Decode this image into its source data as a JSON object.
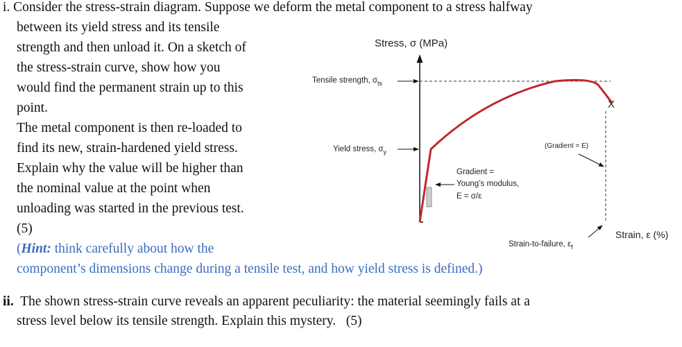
{
  "question_i": {
    "lines": [
      "i. Consider the stress-strain diagram. Suppose we deform the metal component to a stress halfway",
      "between its yield stress and its tensile",
      "strength and then unload it. On a sketch of",
      "the stress-strain curve, show how you",
      "would find the permanent strain up to this",
      "point.",
      "The metal component is then re-loaded to",
      "find its new, strain-hardened yield stress.",
      "Explain why the value will be higher than",
      "the nominal value at the point when",
      "unloading was started in the previous test.",
      "(5)"
    ]
  },
  "hint": {
    "open": "(",
    "emphasis": "Hint:",
    "lines": [
      " think carefully about how the",
      "component’s dimensions change during a tensile test, and how yield stress is defined.)"
    ]
  },
  "question_ii": {
    "label": "ii.",
    "lines": [
      "The shown stress-strain curve reveals an apparent peculiarity: the material seemingly fails at a",
      "stress level below its tensile strength. Explain this mystery.   (5)"
    ]
  },
  "diagram": {
    "y_axis_label": "Stress, σ (MPa)",
    "x_axis_label": "Strain, ε (%)",
    "tensile_strength": {
      "text": "Tensile strength, σ",
      "subscript": "ts"
    },
    "yield_stress": {
      "text": "Yield stress, σ",
      "subscript": "y"
    },
    "gradient_e": "(Gradient = E)",
    "gradient_note": [
      "Gradient =",
      "Young’s modulus,",
      "E = σ/ε"
    ],
    "strain_to_failure": {
      "text": "Strain-to-failure, ε",
      "subscript": "f"
    },
    "failure_mark": "X"
  }
}
